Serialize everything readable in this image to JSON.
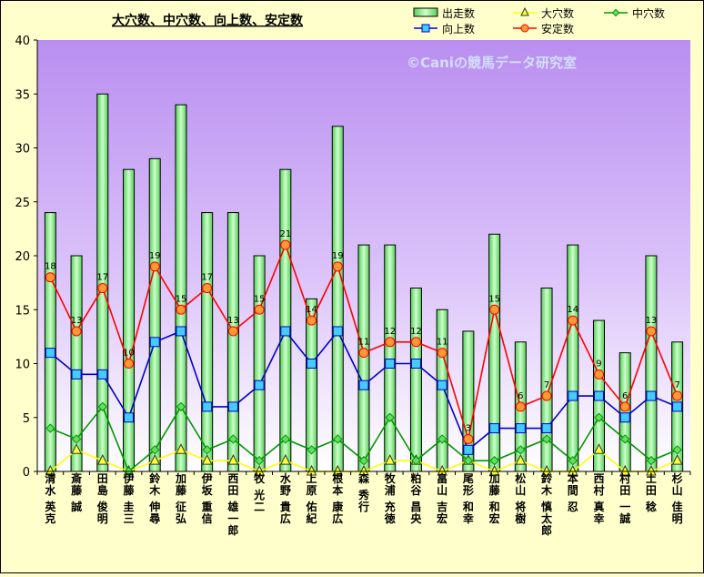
{
  "chart_data": {
    "type": "bar",
    "title": "大穴数、中穴数、向上数、安定数",
    "watermark": "©Caniの競馬データ研究室",
    "ylim": [
      0,
      40
    ],
    "yticks": [
      "0",
      "5",
      "10",
      "15",
      "20",
      "25",
      "30",
      "35",
      "40"
    ],
    "categories": [
      "清水 英克",
      "斎藤 誠",
      "田島 俊明",
      "伊藤 圭三",
      "鈴木 伸尋",
      "加藤 征弘",
      "伊坂 重信",
      "西田 雄一郎",
      "牧 光二",
      "水野 貴広",
      "上原 佑紀",
      "根本 康広",
      "森 秀行",
      "牧浦 充徳",
      "粕谷 昌央",
      "畠山 吉宏",
      "尾形 和幸",
      "加藤 和宏",
      "松山 将樹",
      "鈴木 慎太郎",
      "本間 忍",
      "西村 真幸",
      "村田 一誠",
      "土田 稔",
      "杉山 佳明"
    ],
    "series": [
      {
        "name": "出走数",
        "type": "bar",
        "color": "#99ff99",
        "values": [
          24,
          20,
          35,
          28,
          29,
          34,
          24,
          24,
          20,
          28,
          16,
          32,
          21,
          21,
          17,
          15,
          13,
          22,
          12,
          17,
          21,
          14,
          11,
          20,
          12
        ]
      },
      {
        "name": "大穴数",
        "type": "line",
        "color": "#ffff00",
        "values": [
          0,
          2,
          1,
          0,
          1,
          2,
          1,
          1,
          0,
          1,
          0,
          0,
          0,
          1,
          1,
          0,
          1,
          0,
          1,
          0,
          0,
          2,
          0,
          0,
          1
        ]
      },
      {
        "name": "中穴数",
        "type": "line",
        "color": "#009900",
        "values": [
          4,
          3,
          6,
          0,
          2,
          6,
          2,
          3,
          1,
          3,
          2,
          3,
          1,
          5,
          1,
          3,
          1,
          1,
          2,
          3,
          1,
          5,
          3,
          1,
          2
        ]
      },
      {
        "name": "向上数",
        "type": "line",
        "color": "#0000cc",
        "values": [
          11,
          9,
          9,
          5,
          12,
          13,
          6,
          6,
          8,
          13,
          10,
          13,
          8,
          10,
          10,
          8,
          2,
          4,
          4,
          4,
          7,
          7,
          5,
          7,
          6
        ]
      },
      {
        "name": "安定数",
        "type": "line",
        "color": "#ff0000",
        "values": [
          18,
          13,
          17,
          10,
          19,
          15,
          17,
          13,
          15,
          21,
          14,
          19,
          11,
          12,
          12,
          11,
          3,
          15,
          6,
          7,
          14,
          9,
          6,
          13,
          7
        ]
      }
    ],
    "data_labels_series": "安定数",
    "legend_position": "top-right",
    "grid": false
  }
}
